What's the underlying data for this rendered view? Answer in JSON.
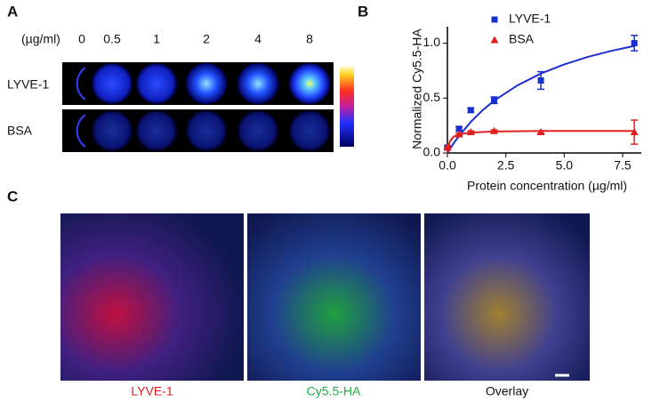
{
  "panel_labels": [
    "A",
    "B",
    "C"
  ],
  "panel_a": {
    "unit_label": "(µg/ml)",
    "concentrations": [
      0,
      0.5,
      1,
      2,
      4,
      8
    ],
    "row_labels": [
      "LYVE-1",
      "BSA"
    ]
  },
  "chart_data": {
    "type": "scatter",
    "y_label": "Normalized Cy5.5-HA",
    "x_label": "Protein concentration (µg/ml)",
    "xlim": [
      0,
      8.3
    ],
    "ylim": [
      0,
      1.15
    ],
    "xticks": [
      {
        "value": 0,
        "label": "0.0"
      },
      {
        "value": 2.5,
        "label": "2.5"
      },
      {
        "value": 5,
        "label": "5.0"
      },
      {
        "value": 7.5,
        "label": "7.5"
      }
    ],
    "yticks": [
      {
        "value": 0,
        "label": "0.0"
      },
      {
        "value": 0.5,
        "label": "0.5"
      },
      {
        "value": 1,
        "label": "1.0"
      }
    ],
    "legend": "top",
    "x": [
      0,
      0.5,
      1,
      2,
      4,
      8
    ],
    "series": [
      {
        "name": "LYVE-1",
        "color": "#1a2fd0",
        "marker": "square",
        "values": [
          0.05,
          0.22,
          0.39,
          0.48,
          0.66,
          1.0
        ],
        "errors": [
          0.01,
          0.02,
          0.02,
          0.03,
          0.08,
          0.07
        ],
        "fit": {
          "x": [
            0,
            0.25,
            0.5,
            1,
            1.5,
            2,
            3,
            4,
            5,
            6,
            7,
            8
          ],
          "values": [
            0,
            0.083,
            0.156,
            0.283,
            0.388,
            0.476,
            0.616,
            0.723,
            0.806,
            0.874,
            0.929,
            0.975
          ]
        }
      },
      {
        "name": "BSA",
        "color": "#e02020",
        "marker": "triangle",
        "values": [
          0.05,
          0.17,
          0.19,
          0.2,
          0.19,
          0.19
        ],
        "errors": [
          0.01,
          0.01,
          0.01,
          0.01,
          0.01,
          0.11
        ],
        "fit": {
          "x": [
            0,
            0.1,
            0.25,
            0.5,
            1,
            2,
            4,
            8
          ],
          "values": [
            0,
            0.103,
            0.146,
            0.171,
            0.186,
            0.195,
            0.2,
            0.2
          ]
        }
      }
    ]
  },
  "panel_c": {
    "image_labels": [
      "LYVE-1",
      "Cy5.5-HA",
      "Overlay"
    ]
  }
}
